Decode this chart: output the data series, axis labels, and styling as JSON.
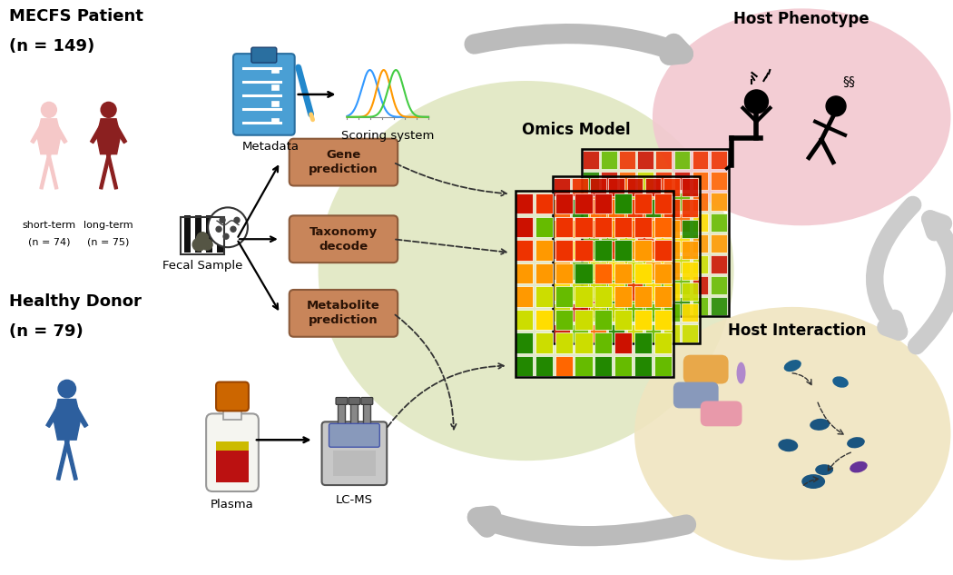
{
  "bg_color": "#ffffff",
  "mecfs_title": "MECFS Patient",
  "mecfs_n": "(n = 149)",
  "short_term": "short-term",
  "short_n": "(n = 74)",
  "long_term": "long-term",
  "long_n": "(n = 75)",
  "healthy_title": "Healthy Donor",
  "healthy_n": "(n = 79)",
  "metadata_label": "Metadata",
  "scoring_label": "Scoring system",
  "fecal_label": "Fecal Sample",
  "gene_label": "Gene\nprediction",
  "taxonomy_label": "Taxonomy\ndecode",
  "metabolite_label": "Metabolite\nprediction",
  "plasma_label": "Plasma",
  "lcms_label": "LC-MS",
  "omics_label": "Omics Model",
  "host_phenotype_label": "Host Phenotype",
  "host_interaction_label": "Host Interaction",
  "short_color": "#f5c8c8",
  "long_color": "#8b2020",
  "healthy_color": "#2d5f9e",
  "omics_bg_color": "#cdd89a",
  "phenotype_bg_color": "#f2c8d0",
  "interaction_bg_color": "#f0e5c0",
  "box_color": "#c8855a",
  "box_edge_color": "#8b5a3a",
  "box_text_color": "#2a1205",
  "arrow_gray": "#aaaaaa",
  "clipboard_color": "#4a9fd4",
  "clipboard_dark": "#2a6fa0",
  "pencil_color": "#2288cc"
}
